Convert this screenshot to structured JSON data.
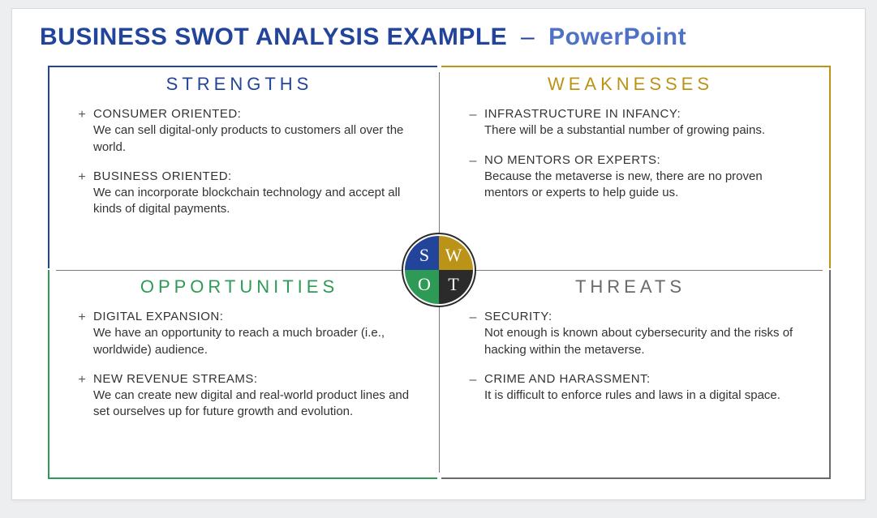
{
  "title": {
    "main": "BUSINESS SWOT ANALYSIS EXAMPLE",
    "dash": "–",
    "sub": "PowerPoint"
  },
  "colors": {
    "strengths": "#22449a",
    "weaknesses": "#bb9316",
    "opportunities": "#2d9b56",
    "threats": "#6a6a6a",
    "background": "#edeef0",
    "card": "#ffffff"
  },
  "center": {
    "s": "S",
    "w": "W",
    "o": "O",
    "t": "T"
  },
  "quadrants": {
    "strengths": {
      "heading": "STRENGTHS",
      "bullet": "+",
      "items": [
        {
          "head": "CONSUMER ORIENTED:",
          "body": "We can sell digital-only products to customers all over the world."
        },
        {
          "head": "BUSINESS ORIENTED:",
          "body": "We can incorporate blockchain technology and accept all kinds of digital payments."
        }
      ]
    },
    "weaknesses": {
      "heading": "WEAKNESSES",
      "bullet": "–",
      "items": [
        {
          "head": "INFRASTRUCTURE IN INFANCY:",
          "body": "There will be a substantial number of growing pains."
        },
        {
          "head": "NO MENTORS OR EXPERTS:",
          "body": "Because the metaverse is new, there are no proven mentors or experts to help guide us."
        }
      ]
    },
    "opportunities": {
      "heading": "OPPORTUNITIES",
      "bullet": "+",
      "items": [
        {
          "head": "DIGITAL EXPANSION:",
          "body": "We have an opportunity to reach a much broader (i.e., worldwide) audience."
        },
        {
          "head": "NEW REVENUE STREAMS:",
          "body": "We can create new digital and real-world product lines and set ourselves up for future growth and evolution."
        }
      ]
    },
    "threats": {
      "heading": "THREATS",
      "bullet": "–",
      "items": [
        {
          "head": "SECURITY:",
          "body": "Not enough is known about cybersecurity and the risks of hacking within the metaverse."
        },
        {
          "head": "CRIME AND HARASSMENT:",
          "body": "It is difficult to enforce rules and laws in a digital space."
        }
      ]
    }
  }
}
